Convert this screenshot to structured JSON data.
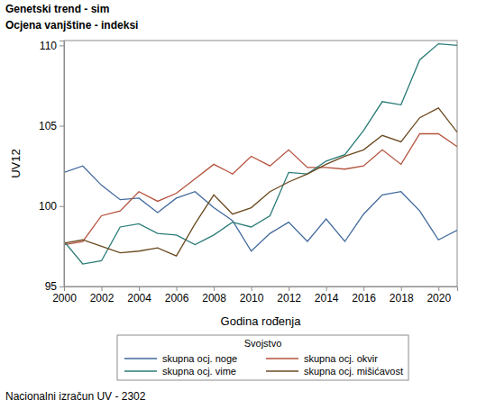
{
  "chart_data": {
    "type": "line",
    "title": "Genetski trend - sim",
    "subtitle": "Ocjena vanjštine - indeksi",
    "x_label": "Godina rođenja",
    "y_label": "UV12",
    "legend_title": "Svojstvo",
    "footnote": "Nacionalni izračun UV - 2302",
    "legend": "bottom",
    "grid": false,
    "x": [
      2000,
      2001,
      2002,
      2003,
      2004,
      2005,
      2006,
      2007,
      2008,
      2009,
      2010,
      2011,
      2012,
      2013,
      2014,
      2015,
      2016,
      2017,
      2018,
      2019,
      2020,
      2021
    ],
    "xlim": [
      2000,
      2021
    ],
    "xticks": [
      2000,
      2002,
      2004,
      2006,
      2008,
      2010,
      2012,
      2014,
      2016,
      2018,
      2020
    ],
    "ylim": [
      95,
      110.3
    ],
    "yticks": [
      95,
      100,
      105,
      110
    ],
    "series": [
      {
        "name": "skupna ocj. noge",
        "color": "#41699b",
        "values": [
          102.1,
          102.5,
          101.3,
          100.4,
          100.5,
          99.6,
          100.5,
          100.9,
          99.9,
          99.1,
          97.2,
          98.3,
          99.0,
          97.8,
          99.2,
          97.8,
          99.5,
          100.7,
          100.9,
          99.7,
          97.9,
          98.5
        ]
      },
      {
        "name": "skupna ocj. okvir",
        "color": "#b5523d",
        "values": [
          97.6,
          97.8,
          99.4,
          99.7,
          100.9,
          100.3,
          100.8,
          101.7,
          102.6,
          102.0,
          103.1,
          102.5,
          103.5,
          102.4,
          102.4,
          102.3,
          102.5,
          103.5,
          102.6,
          104.5,
          104.5,
          103.7
        ]
      },
      {
        "name": "skupna ocj. vime",
        "color": "#2a7b77",
        "values": [
          97.8,
          96.4,
          96.6,
          98.7,
          98.9,
          98.3,
          98.2,
          97.6,
          98.2,
          99.0,
          98.7,
          99.4,
          102.1,
          102.0,
          102.8,
          103.2,
          104.7,
          106.5,
          106.3,
          109.1,
          110.1,
          110.0
        ]
      },
      {
        "name": "skupna ocj. mišićavost",
        "color": "#6b4a20",
        "values": [
          97.7,
          97.9,
          97.5,
          97.1,
          97.2,
          97.4,
          96.9,
          98.9,
          100.7,
          99.5,
          99.9,
          100.9,
          101.5,
          102.0,
          102.6,
          103.1,
          103.5,
          104.4,
          104.0,
          105.5,
          106.1,
          104.6
        ]
      }
    ]
  }
}
